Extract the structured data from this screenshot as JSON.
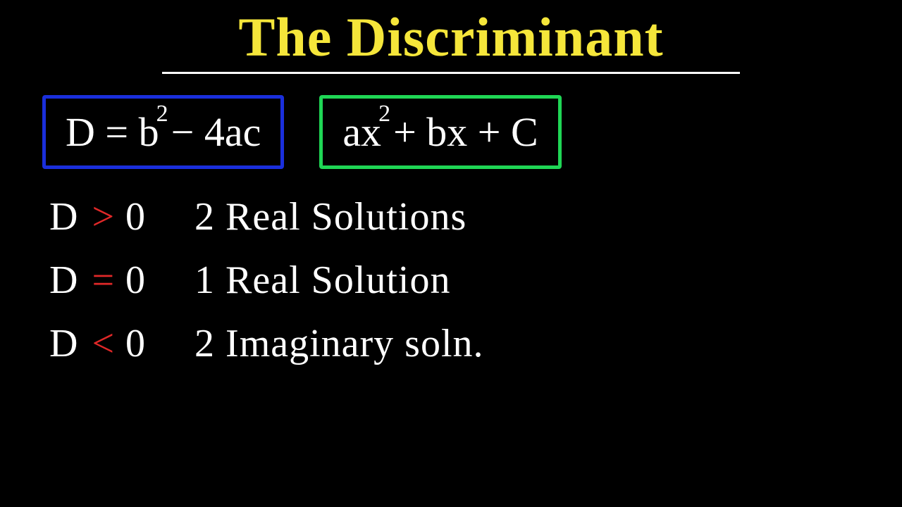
{
  "title": {
    "text": "The Discriminant",
    "color": "#f5e63a",
    "underline_color": "#ffffff"
  },
  "formulas": {
    "discriminant": {
      "border_color": "#1a2fdc",
      "text_color": "#ffffff",
      "parts": {
        "lhs": "D = b",
        "exp": "2",
        "rhs": "− 4ac"
      }
    },
    "quadratic": {
      "border_color": "#1fd655",
      "text_color": "#ffffff",
      "parts": {
        "p1": "ax",
        "exp": "2",
        "p2": "+ bx + C"
      }
    }
  },
  "cases": [
    {
      "var": "D",
      "op": ">",
      "op_color": "#e02828",
      "zero": "0",
      "result": "2 Real Solutions"
    },
    {
      "var": "D",
      "op": "=",
      "op_color": "#e02828",
      "zero": "0",
      "result": "1 Real Solution"
    },
    {
      "var": "D",
      "op": "<",
      "op_color": "#e02828",
      "zero": "0",
      "result": "2 Imaginary soln."
    }
  ],
  "colors": {
    "background": "#000000",
    "text": "#ffffff"
  }
}
